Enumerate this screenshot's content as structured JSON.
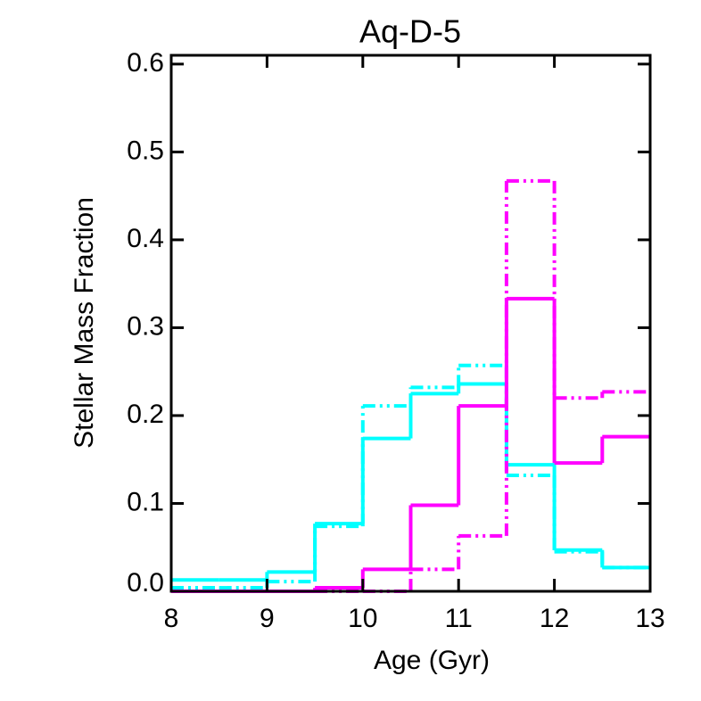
{
  "chart_data": {
    "type": "step-histogram",
    "title": "Aq-D-5",
    "x_label": "Age (Gyr)",
    "y_label": "Stellar Mass Fraction",
    "bins": [
      8,
      8.5,
      9,
      9.5,
      10,
      10.5,
      11,
      11.5,
      12,
      12.5,
      13
    ],
    "series": [
      {
        "color": "#00ffff",
        "dash": "solid",
        "values": [
          0.013,
          0.013,
          0.022,
          0.077,
          0.174,
          0.225,
          0.236,
          0.144,
          0.047,
          0.027
        ]
      },
      {
        "color": "#00ffff",
        "dash": "dash-dot-dot",
        "values": [
          0.004,
          0.004,
          0.011,
          0.074,
          0.211,
          0.232,
          0.257,
          0.132,
          0.045,
          0.027
        ]
      },
      {
        "color": "#ff00ff",
        "dash": "solid",
        "values": [
          0,
          0,
          0,
          0.004,
          0.025,
          0.098,
          0.211,
          0.333,
          0.146,
          0.176
        ]
      },
      {
        "color": "#ff00ff",
        "dash": "dash-dot-dot",
        "values": [
          0,
          0,
          0,
          0,
          0,
          0.025,
          0.063,
          0.467,
          0.22,
          0.227
        ]
      }
    ],
    "xlim": [
      8,
      13
    ],
    "ylim": [
      0,
      0.61
    ],
    "xticks": [
      8,
      9,
      10,
      11,
      12,
      13
    ],
    "yticks": [
      {
        "value": 0,
        "label": "0.0"
      },
      0.1,
      0.2,
      0.3,
      0.4,
      0.5,
      0.6
    ]
  }
}
